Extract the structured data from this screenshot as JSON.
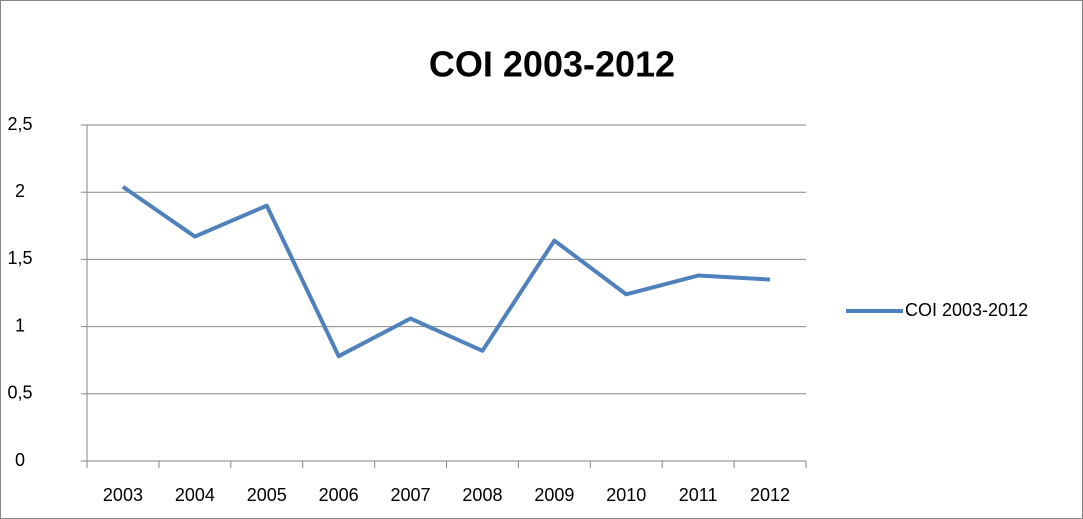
{
  "chart_data": {
    "type": "line",
    "title": "COI  2003-2012",
    "categories": [
      "2003",
      "2004",
      "2005",
      "2006",
      "2007",
      "2008",
      "2009",
      "2010",
      "2011",
      "2012"
    ],
    "series": [
      {
        "name": "COI  2003-2012",
        "color": "#4f81bd",
        "values": [
          2.04,
          1.67,
          1.9,
          0.78,
          1.06,
          0.82,
          1.64,
          1.24,
          1.38,
          1.35
        ]
      }
    ],
    "ylim": [
      0,
      2.5
    ],
    "yticks": [
      0,
      {
        "value": 0.5,
        "label": "0,5"
      },
      1,
      {
        "value": 1.5,
        "label": "1,5"
      },
      2,
      {
        "value": 2.5,
        "label": "2,5"
      }
    ],
    "grid": true,
    "legend": "right"
  }
}
